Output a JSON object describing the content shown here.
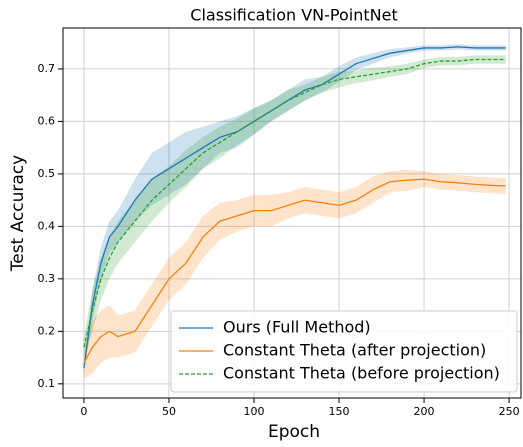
{
  "chart_data": {
    "type": "line",
    "title": "Classification VN-PointNet",
    "xlabel": "Epoch",
    "ylabel": "Test Accuracy",
    "x": [
      0,
      5,
      10,
      15,
      20,
      30,
      40,
      50,
      60,
      70,
      80,
      90,
      100,
      110,
      120,
      130,
      140,
      150,
      160,
      170,
      180,
      190,
      200,
      210,
      220,
      230,
      240,
      248
    ],
    "series": [
      {
        "name": "Ours (Full Method)",
        "color": "#1f77b4",
        "dash": "solid",
        "values": [
          0.13,
          0.25,
          0.33,
          0.38,
          0.4,
          0.45,
          0.49,
          0.51,
          0.53,
          0.55,
          0.57,
          0.58,
          0.6,
          0.62,
          0.64,
          0.66,
          0.67,
          0.69,
          0.71,
          0.72,
          0.73,
          0.735,
          0.74,
          0.74,
          0.742,
          0.74,
          0.74,
          0.74
        ],
        "band": [
          0.01,
          0.03,
          0.03,
          0.03,
          0.03,
          0.04,
          0.05,
          0.05,
          0.05,
          0.04,
          0.03,
          0.03,
          0.025,
          0.02,
          0.02,
          0.02,
          0.015,
          0.015,
          0.012,
          0.01,
          0.008,
          0.006,
          0.005,
          0.005,
          0.005,
          0.005,
          0.005,
          0.005
        ]
      },
      {
        "name": "Constant Theta (after projection)",
        "color": "#ff7f0e",
        "dash": "solid",
        "values": [
          0.14,
          0.17,
          0.19,
          0.2,
          0.19,
          0.2,
          0.25,
          0.3,
          0.33,
          0.38,
          0.41,
          0.42,
          0.43,
          0.43,
          0.44,
          0.45,
          0.445,
          0.44,
          0.45,
          0.47,
          0.485,
          0.488,
          0.49,
          0.485,
          0.483,
          0.48,
          0.478,
          0.477
        ],
        "band": [
          0.03,
          0.05,
          0.05,
          0.05,
          0.04,
          0.04,
          0.04,
          0.04,
          0.04,
          0.04,
          0.035,
          0.03,
          0.03,
          0.03,
          0.025,
          0.025,
          0.025,
          0.025,
          0.025,
          0.025,
          0.02,
          0.02,
          0.015,
          0.015,
          0.015,
          0.015,
          0.015,
          0.015
        ]
      },
      {
        "name": "Constant Theta (before projection)",
        "color": "#2ca02c",
        "dash": "dashed",
        "values": [
          0.17,
          0.24,
          0.3,
          0.34,
          0.37,
          0.41,
          0.45,
          0.48,
          0.51,
          0.54,
          0.56,
          0.58,
          0.6,
          0.62,
          0.64,
          0.655,
          0.67,
          0.68,
          0.685,
          0.69,
          0.695,
          0.7,
          0.71,
          0.715,
          0.715,
          0.718,
          0.718,
          0.718
        ],
        "band": [
          0.02,
          0.04,
          0.04,
          0.04,
          0.04,
          0.04,
          0.04,
          0.035,
          0.035,
          0.03,
          0.03,
          0.025,
          0.025,
          0.02,
          0.02,
          0.015,
          0.015,
          0.015,
          0.012,
          0.012,
          0.01,
          0.01,
          0.008,
          0.008,
          0.008,
          0.008,
          0.008,
          0.008
        ]
      }
    ],
    "xlim": [
      -12.3,
      257
    ],
    "ylim": [
      0.073,
      0.778
    ],
    "xticks": [
      0,
      50,
      100,
      150,
      200,
      250
    ],
    "yticks": [
      0.1,
      0.2,
      0.3,
      0.4,
      0.5,
      0.6,
      0.7
    ],
    "grid": true,
    "legend": "lower right"
  }
}
